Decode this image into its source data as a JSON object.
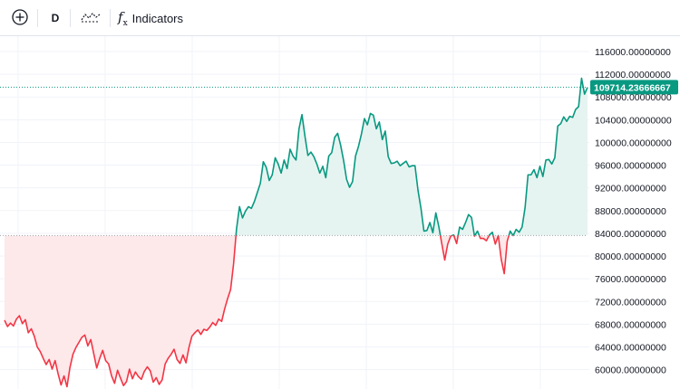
{
  "toolbar": {
    "add_symbol_icon": "plus-circle-icon",
    "interval_label": "D",
    "chart_type_icon": "line-chart-icon",
    "indicators_icon": "fx-icon",
    "indicators_label": "Indicators"
  },
  "colors": {
    "up_line": "#089981",
    "down_line": "#f23645",
    "up_fill": "#e6f4f1",
    "down_fill": "#fde8ea",
    "baseline": "#a0a4ad",
    "price_line": "#089981",
    "grid": "#f0f3fa"
  },
  "chart_data": {
    "type": "line",
    "style": "baseline",
    "y_axis_labels": [
      "116000.00000000",
      "112000.00000000",
      "108000.00000000",
      "104000.00000000",
      "100000.00000000",
      "96000.00000000",
      "92000.00000000",
      "88000.00000000",
      "84000.00000000",
      "80000.00000000",
      "76000.00000000",
      "72000.00000000",
      "68000.00000000",
      "64000.00000000",
      "60000.00000000"
    ],
    "y_ticks": [
      116000,
      112000,
      108000,
      104000,
      100000,
      96000,
      92000,
      88000,
      84000,
      80000,
      76000,
      72000,
      68000,
      64000,
      60000
    ],
    "ylim": [
      56600,
      118700
    ],
    "baseline_value": 83600,
    "last_price": 109714.23666667,
    "last_price_label": "109714.23666667",
    "values": [
      68700,
      67600,
      68200,
      67700,
      68900,
      69500,
      68100,
      68800,
      66500,
      67200,
      65900,
      64000,
      63200,
      62000,
      60900,
      61800,
      60100,
      61600,
      59300,
      57300,
      58900,
      57000,
      60400,
      62700,
      63900,
      64800,
      65700,
      66100,
      64200,
      65300,
      62800,
      60300,
      62000,
      63400,
      61600,
      61000,
      58900,
      57600,
      59900,
      58500,
      57200,
      57900,
      60100,
      58400,
      59600,
      58800,
      58300,
      59700,
      60500,
      59800,
      57800,
      58600,
      57400,
      58200,
      61000,
      62000,
      62700,
      63600,
      61800,
      61100,
      62600,
      61200,
      63900,
      65900,
      66500,
      67000,
      66200,
      67100,
      66900,
      67500,
      68300,
      67800,
      68900,
      68500,
      70700,
      72500,
      74100,
      78600,
      84800,
      88700,
      86700,
      87900,
      88700,
      88400,
      89600,
      91200,
      92800,
      96600,
      95600,
      93300,
      94300,
      97300,
      96200,
      94600,
      96900,
      95400,
      98800,
      97600,
      96900,
      102400,
      104900,
      101100,
      97700,
      98300,
      97500,
      96200,
      94600,
      95800,
      93800,
      97600,
      98200,
      100900,
      101600,
      99500,
      96800,
      93500,
      92100,
      93100,
      97600,
      99300,
      101500,
      104200,
      103100,
      105100,
      104800,
      102400,
      103600,
      100500,
      102000,
      97500,
      96300,
      96400,
      96700,
      95900,
      96300,
      96700,
      95700,
      95900,
      95900,
      91600,
      88400,
      84400,
      84500,
      85900,
      84100,
      87600,
      85200,
      82200,
      79300,
      82100,
      83500,
      83700,
      82200,
      85100,
      84700,
      85900,
      87300,
      86800,
      83500,
      84400,
      83100,
      83100,
      82700,
      83700,
      84200,
      82100,
      83600,
      79400,
      76900,
      82600,
      84400,
      83600,
      84700,
      84200,
      85100,
      88500,
      94300,
      94300,
      95200,
      93800,
      95800,
      94000,
      96900,
      97000,
      96200,
      97300,
      102900,
      103300,
      104500,
      103700,
      104600,
      104400,
      105800,
      106300,
      111300,
      108500,
      109700
    ]
  }
}
